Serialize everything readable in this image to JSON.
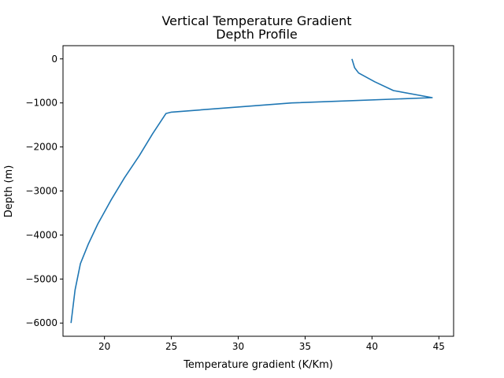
{
  "chart_data": {
    "type": "line",
    "title_lines": [
      "Vertical Temperature Gradient",
      "Depth Profile"
    ],
    "xlabel": "Temperature gradient (K/Km)",
    "ylabel": "Depth (m)",
    "xlim": [
      16.9,
      46.1
    ],
    "ylim": [
      -6300,
      300
    ],
    "xticks": [
      {
        "value": 20,
        "label": "20"
      },
      {
        "value": 25,
        "label": "25"
      },
      {
        "value": 30,
        "label": "30"
      },
      {
        "value": 35,
        "label": "35"
      },
      {
        "value": 40,
        "label": "40"
      },
      {
        "value": 45,
        "label": "45"
      }
    ],
    "yticks": [
      {
        "value": 0,
        "label": "0"
      },
      {
        "value": -1000,
        "label": "−1000"
      },
      {
        "value": -2000,
        "label": "−2000"
      },
      {
        "value": -3000,
        "label": "−3000"
      },
      {
        "value": -4000,
        "label": "−4000"
      },
      {
        "value": -5000,
        "label": "−5000"
      },
      {
        "value": -6000,
        "label": "−6000"
      }
    ],
    "grid": false,
    "legend": "none",
    "series": [
      {
        "color": "#1f77b4",
        "x": [
          38.5,
          38.7,
          39.0,
          40.2,
          41.6,
          44.5,
          34.0,
          25.0,
          24.6,
          23.6,
          22.6,
          21.5,
          20.5,
          19.5,
          18.8,
          18.2,
          17.8,
          17.6,
          17.5
        ],
        "y": [
          0,
          -200,
          -320,
          -520,
          -720,
          -880,
          -1000,
          -1210,
          -1240,
          -1700,
          -2200,
          -2700,
          -3200,
          -3750,
          -4200,
          -4650,
          -5250,
          -5750,
          -6000
        ]
      }
    ]
  }
}
